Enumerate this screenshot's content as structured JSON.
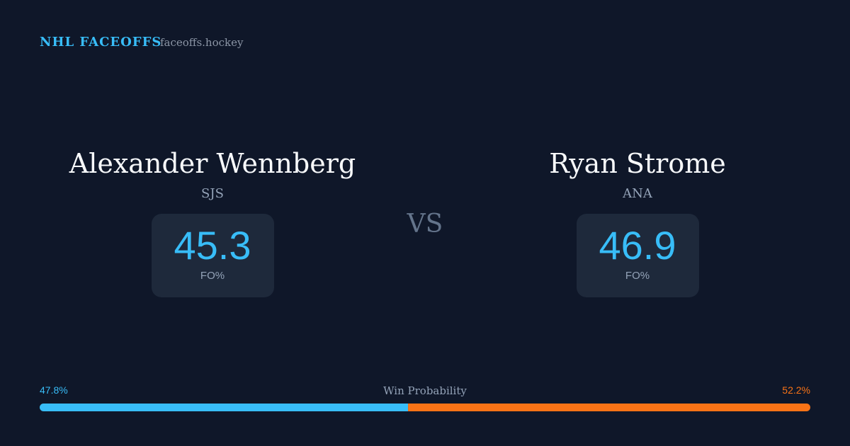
{
  "header": {
    "brand": "NHL FACEOFFS",
    "site": "faceoffs.hockey"
  },
  "vs": "VS",
  "players": [
    {
      "name": "Alexander Wennberg",
      "team": "SJS",
      "stat": "45.3",
      "stat_label": "FO%"
    },
    {
      "name": "Ryan Strome",
      "team": "ANA",
      "stat": "46.9",
      "stat_label": "FO%"
    }
  ],
  "win_probability": {
    "title": "Win Probability",
    "segments": [
      {
        "value": 47.8,
        "label": "47.8%",
        "color": "#38bdf8"
      },
      {
        "value": 52.2,
        "label": "52.2%",
        "color": "#f97316"
      }
    ]
  }
}
